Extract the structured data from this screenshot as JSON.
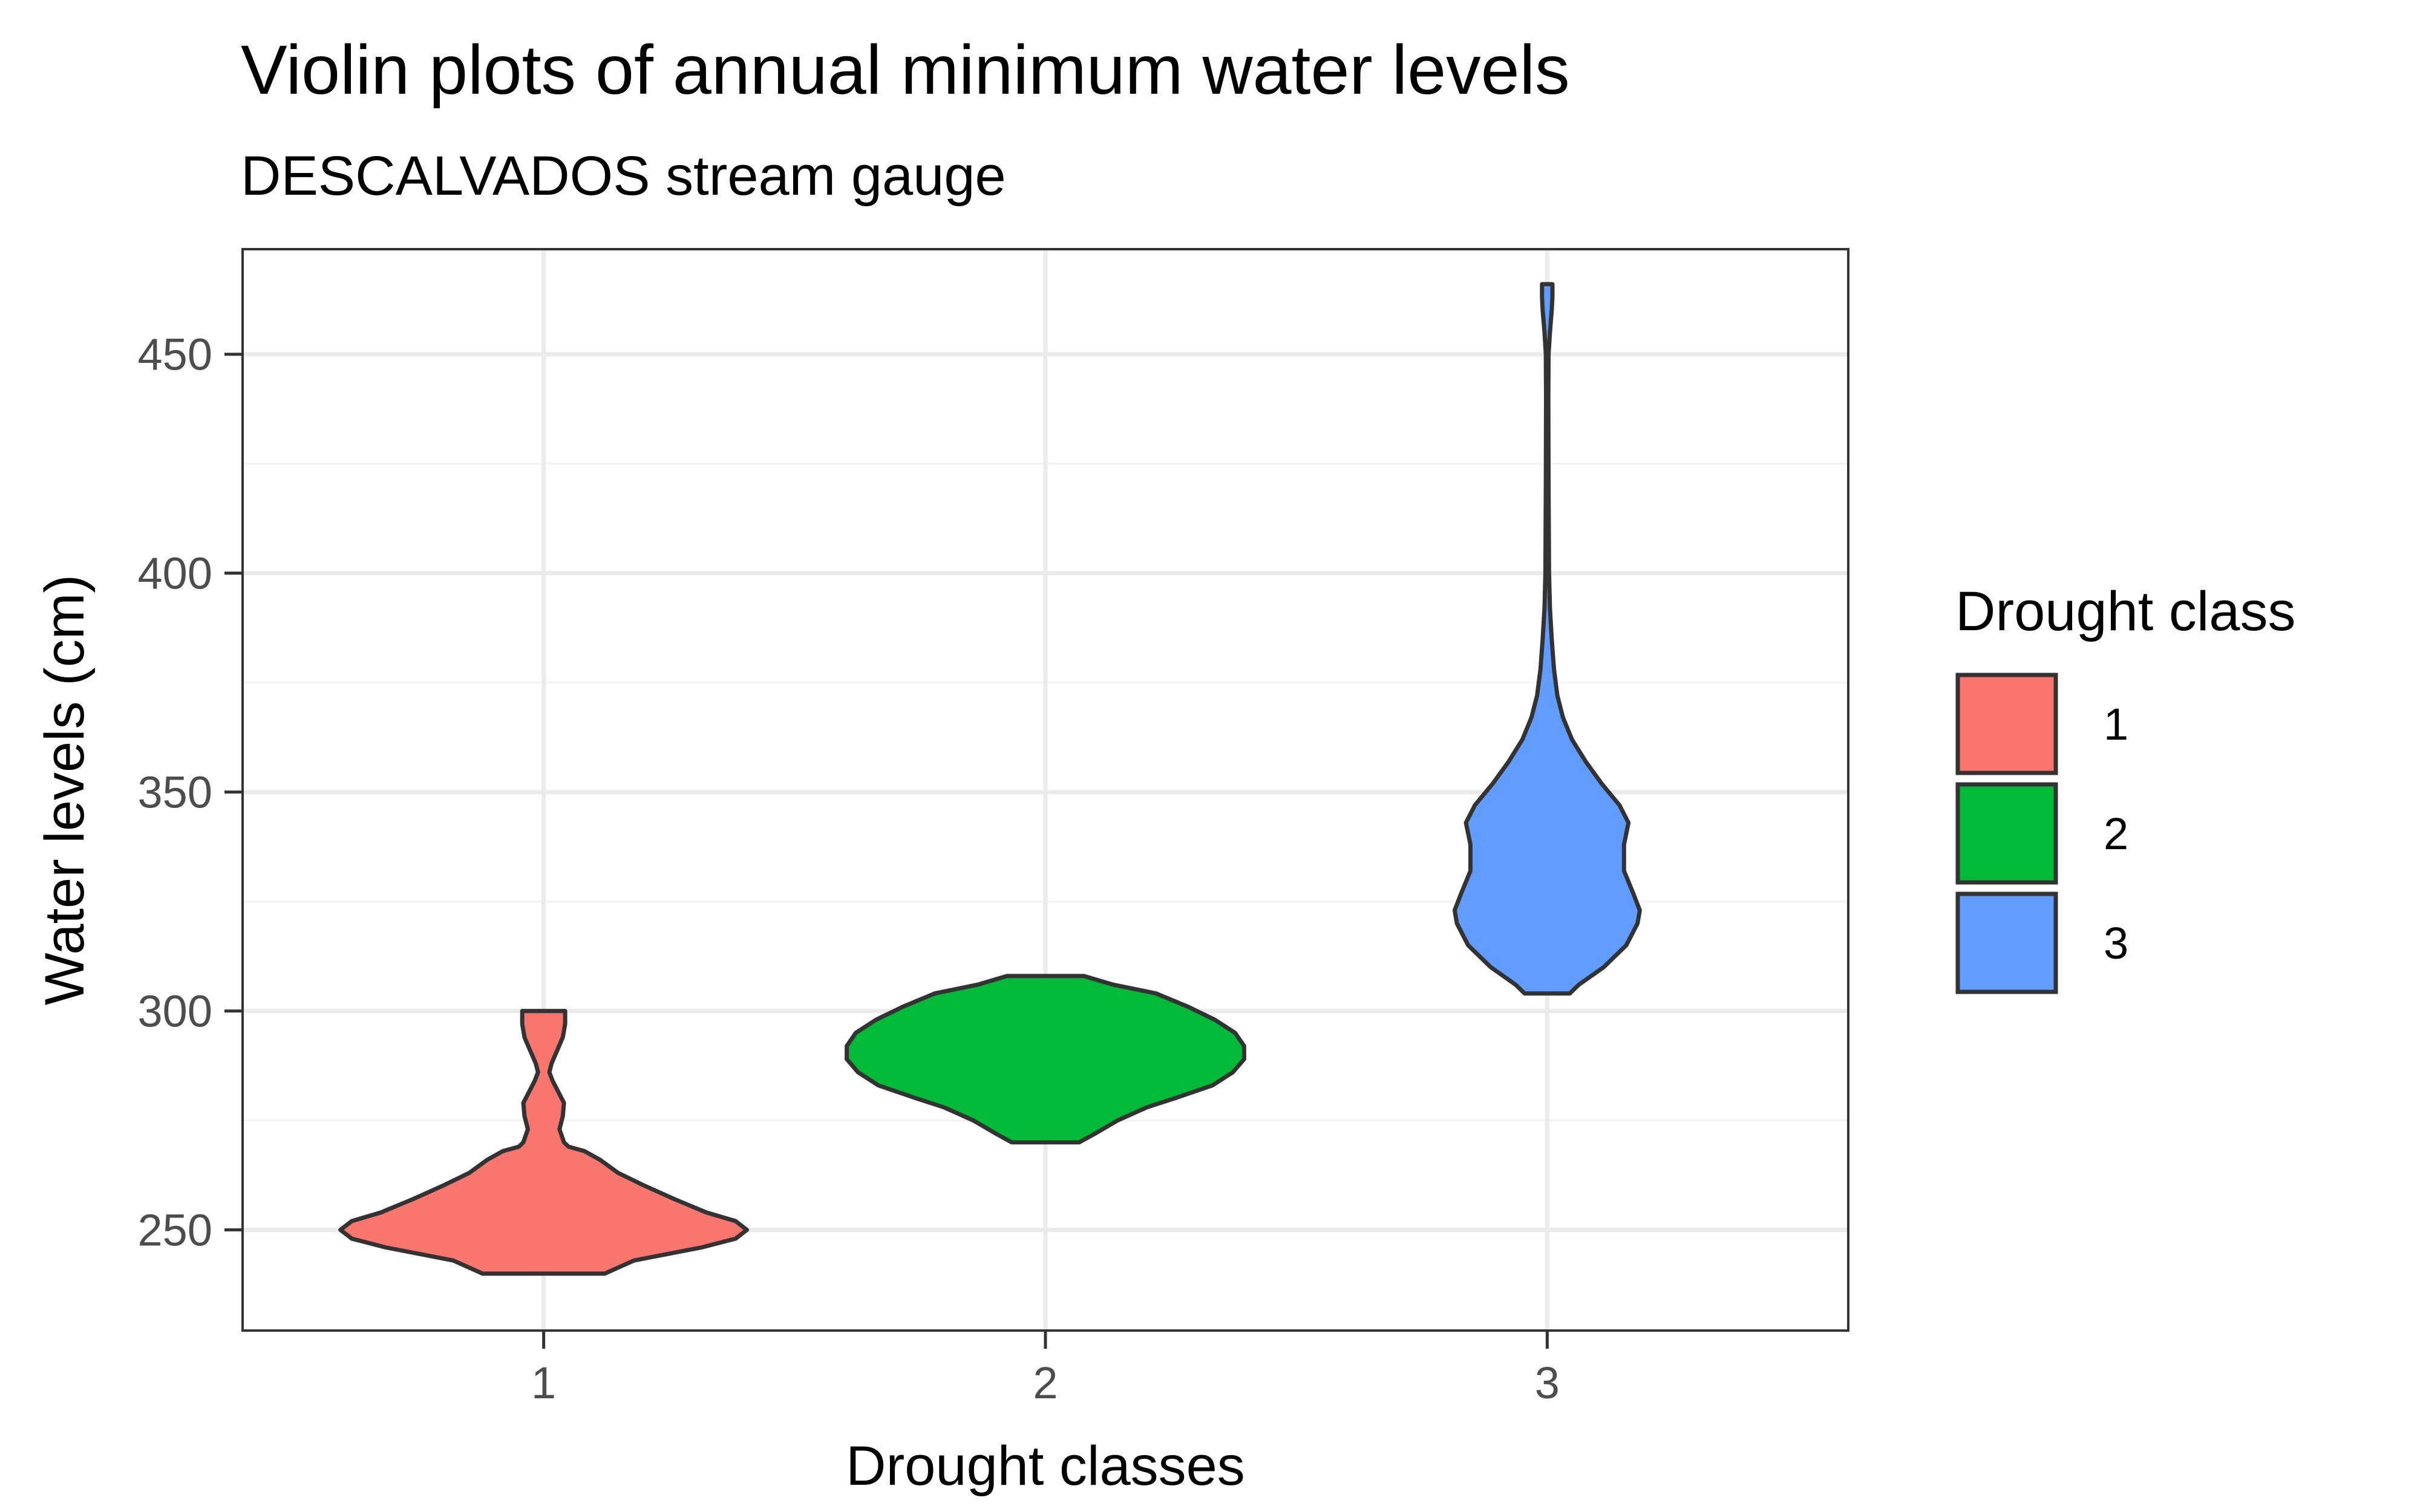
{
  "chart_data": {
    "type": "violin",
    "title": "Violin plots of annual minimum water levels",
    "subtitle": "DESCALVADOS stream gauge",
    "xlabel": "Drought classes",
    "ylabel": "Water levels (cm)",
    "categories": [
      "1",
      "2",
      "3"
    ],
    "ylim": [
      227,
      474
    ],
    "yticks": [
      250,
      300,
      350,
      400,
      450
    ],
    "grid": true,
    "legend": {
      "title": "Drought class",
      "position": "right",
      "entries": [
        "1",
        "2",
        "3"
      ]
    },
    "colors": [
      "#F8766D",
      "#00BA38",
      "#619CFF"
    ],
    "series": [
      {
        "category": "1",
        "min": 240,
        "max": 300,
        "profile": [
          [
            240,
            0.27
          ],
          [
            243,
            0.4
          ],
          [
            246,
            0.7
          ],
          [
            248,
            0.85
          ],
          [
            250,
            0.9
          ],
          [
            252,
            0.85
          ],
          [
            254,
            0.72
          ],
          [
            257,
            0.58
          ],
          [
            260,
            0.45
          ],
          [
            263,
            0.33
          ],
          [
            266,
            0.25
          ],
          [
            268,
            0.18
          ],
          [
            269,
            0.11
          ],
          [
            270,
            0.09
          ],
          [
            273,
            0.07
          ],
          [
            276,
            0.085
          ],
          [
            279,
            0.09
          ],
          [
            281,
            0.07
          ],
          [
            284,
            0.04
          ],
          [
            286,
            0.025
          ],
          [
            288,
            0.035
          ],
          [
            291,
            0.06
          ],
          [
            294,
            0.085
          ],
          [
            297,
            0.095
          ],
          [
            300,
            0.095
          ]
        ]
      },
      {
        "category": "2",
        "min": 270,
        "max": 308,
        "profile": [
          [
            270,
            0.15
          ],
          [
            272,
            0.22
          ],
          [
            275,
            0.32
          ],
          [
            278,
            0.45
          ],
          [
            280,
            0.57
          ],
          [
            283,
            0.74
          ],
          [
            286,
            0.83
          ],
          [
            289,
            0.88
          ],
          [
            292,
            0.88
          ],
          [
            295,
            0.84
          ],
          [
            298,
            0.75
          ],
          [
            301,
            0.63
          ],
          [
            304,
            0.49
          ],
          [
            306,
            0.3
          ],
          [
            308,
            0.17
          ]
        ]
      },
      {
        "category": "3",
        "min": 304,
        "max": 466,
        "profile": [
          [
            304,
            0.1
          ],
          [
            306,
            0.14
          ],
          [
            310,
            0.25
          ],
          [
            315,
            0.35
          ],
          [
            320,
            0.4
          ],
          [
            323,
            0.41
          ],
          [
            327,
            0.38
          ],
          [
            332,
            0.34
          ],
          [
            338,
            0.34
          ],
          [
            343,
            0.36
          ],
          [
            347,
            0.32
          ],
          [
            352,
            0.24
          ],
          [
            357,
            0.17
          ],
          [
            362,
            0.11
          ],
          [
            367,
            0.07
          ],
          [
            372,
            0.045
          ],
          [
            378,
            0.03
          ],
          [
            385,
            0.02
          ],
          [
            392,
            0.012
          ],
          [
            400,
            0.008
          ],
          [
            420,
            0.006
          ],
          [
            440,
            0.005
          ],
          [
            450,
            0.006
          ],
          [
            455,
            0.012
          ],
          [
            460,
            0.02
          ],
          [
            463,
            0.023
          ],
          [
            466,
            0.023
          ]
        ]
      }
    ]
  }
}
